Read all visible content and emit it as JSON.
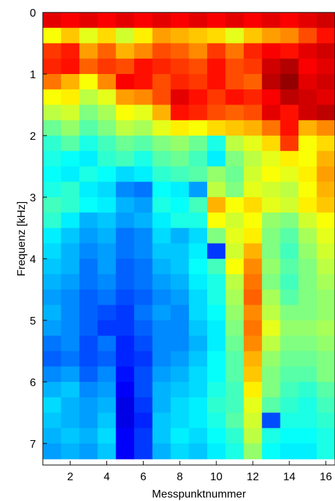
{
  "chart_data": {
    "type": "heatmap",
    "title": "",
    "xlabel": "Messpunktnummer",
    "ylabel": "Frequenz [kHz]",
    "colormap": "jet",
    "color_scale": "normalized 0-1 (blue = low, dark red = high)",
    "xlim": [
      0.5,
      16.5
    ],
    "ylim": [
      7.35,
      0
    ],
    "y_reversed": true,
    "x_ticks": [
      2,
      4,
      6,
      8,
      10,
      12,
      14,
      16
    ],
    "x_tick_labels": [
      "2",
      "4",
      "6",
      "8",
      "10",
      "12",
      "14",
      "16"
    ],
    "y_ticks": [
      0,
      1,
      2,
      3,
      4,
      5,
      6,
      7
    ],
    "y_tick_labels": [
      "0",
      "1",
      "2",
      "3",
      "4",
      "5",
      "6",
      "7"
    ],
    "x": [
      1,
      2,
      3,
      4,
      5,
      6,
      7,
      8,
      9,
      10,
      11,
      12,
      13,
      14,
      15,
      16
    ],
    "y_bands_khz": [
      0.0,
      0.25,
      0.5,
      0.75,
      1.0,
      1.25,
      1.5,
      1.75,
      2.0,
      2.25,
      2.5,
      2.75,
      3.0,
      3.25,
      3.5,
      3.75,
      4.0,
      4.25,
      4.5,
      4.75,
      5.0,
      5.25,
      5.5,
      5.75,
      6.0,
      6.25,
      6.5,
      6.75,
      7.0
    ],
    "values": [
      [
        0.9,
        0.88,
        0.9,
        0.88,
        0.9,
        0.88,
        0.9,
        0.88,
        0.9,
        0.88,
        0.9,
        0.88,
        0.9,
        0.88,
        0.9,
        0.92
      ],
      [
        0.62,
        0.68,
        0.6,
        0.66,
        0.58,
        0.64,
        0.72,
        0.7,
        0.68,
        0.66,
        0.6,
        0.68,
        0.72,
        0.74,
        0.8,
        0.86
      ],
      [
        0.82,
        0.85,
        0.72,
        0.78,
        0.7,
        0.74,
        0.8,
        0.78,
        0.74,
        0.82,
        0.76,
        0.84,
        0.88,
        0.86,
        0.9,
        0.92
      ],
      [
        0.84,
        0.86,
        0.78,
        0.82,
        0.8,
        0.86,
        0.84,
        0.82,
        0.8,
        0.86,
        0.8,
        0.82,
        0.92,
        0.95,
        0.88,
        0.9
      ],
      [
        0.76,
        0.7,
        0.62,
        0.74,
        0.88,
        0.86,
        0.8,
        0.84,
        0.82,
        0.86,
        0.8,
        0.78,
        0.94,
        0.98,
        0.9,
        0.92
      ],
      [
        0.62,
        0.64,
        0.56,
        0.6,
        0.72,
        0.74,
        0.8,
        0.9,
        0.86,
        0.82,
        0.86,
        0.84,
        0.88,
        0.94,
        0.92,
        0.9
      ],
      [
        0.56,
        0.58,
        0.5,
        0.54,
        0.62,
        0.6,
        0.7,
        0.86,
        0.84,
        0.8,
        0.78,
        0.8,
        0.9,
        0.86,
        0.92,
        0.94
      ],
      [
        0.48,
        0.52,
        0.46,
        0.5,
        0.56,
        0.54,
        0.6,
        0.64,
        0.62,
        0.66,
        0.68,
        0.7,
        0.76,
        0.86,
        0.7,
        0.74
      ],
      [
        0.42,
        0.46,
        0.4,
        0.44,
        0.48,
        0.46,
        0.5,
        0.52,
        0.48,
        0.4,
        0.56,
        0.6,
        0.66,
        0.82,
        0.62,
        0.66
      ],
      [
        0.4,
        0.38,
        0.36,
        0.42,
        0.44,
        0.4,
        0.46,
        0.48,
        0.44,
        0.36,
        0.5,
        0.56,
        0.6,
        0.64,
        0.62,
        0.7
      ],
      [
        0.38,
        0.36,
        0.4,
        0.38,
        0.34,
        0.36,
        0.42,
        0.44,
        0.46,
        0.52,
        0.48,
        0.58,
        0.62,
        0.6,
        0.64,
        0.72
      ],
      [
        0.4,
        0.42,
        0.36,
        0.34,
        0.26,
        0.24,
        0.38,
        0.36,
        0.28,
        0.56,
        0.5,
        0.6,
        0.58,
        0.56,
        0.62,
        0.7
      ],
      [
        0.44,
        0.42,
        0.38,
        0.36,
        0.3,
        0.28,
        0.4,
        0.38,
        0.44,
        0.7,
        0.62,
        0.66,
        0.6,
        0.58,
        0.64,
        0.68
      ],
      [
        0.42,
        0.36,
        0.3,
        0.32,
        0.28,
        0.3,
        0.36,
        0.4,
        0.4,
        0.62,
        0.58,
        0.62,
        0.52,
        0.5,
        0.58,
        0.62
      ],
      [
        0.36,
        0.32,
        0.28,
        0.3,
        0.24,
        0.26,
        0.34,
        0.3,
        0.34,
        0.5,
        0.6,
        0.64,
        0.5,
        0.46,
        0.54,
        0.6
      ],
      [
        0.34,
        0.3,
        0.26,
        0.28,
        0.24,
        0.26,
        0.32,
        0.32,
        0.36,
        0.18,
        0.58,
        0.7,
        0.5,
        0.44,
        0.52,
        0.58
      ],
      [
        0.32,
        0.3,
        0.24,
        0.28,
        0.22,
        0.24,
        0.3,
        0.32,
        0.38,
        0.44,
        0.62,
        0.74,
        0.52,
        0.46,
        0.5,
        0.56
      ],
      [
        0.3,
        0.28,
        0.24,
        0.26,
        0.22,
        0.24,
        0.28,
        0.3,
        0.36,
        0.4,
        0.56,
        0.76,
        0.5,
        0.44,
        0.5,
        0.54
      ],
      [
        0.28,
        0.26,
        0.22,
        0.24,
        0.2,
        0.22,
        0.26,
        0.28,
        0.34,
        0.4,
        0.54,
        0.78,
        0.54,
        0.46,
        0.5,
        0.52
      ],
      [
        0.3,
        0.26,
        0.22,
        0.2,
        0.18,
        0.24,
        0.28,
        0.26,
        0.34,
        0.38,
        0.52,
        0.74,
        0.56,
        0.5,
        0.5,
        0.52
      ],
      [
        0.28,
        0.26,
        0.22,
        0.18,
        0.18,
        0.22,
        0.26,
        0.26,
        0.32,
        0.36,
        0.5,
        0.76,
        0.6,
        0.52,
        0.52,
        0.54
      ],
      [
        0.24,
        0.26,
        0.2,
        0.24,
        0.16,
        0.2,
        0.26,
        0.26,
        0.3,
        0.36,
        0.48,
        0.74,
        0.56,
        0.5,
        0.5,
        0.52
      ],
      [
        0.22,
        0.24,
        0.2,
        0.22,
        0.16,
        0.18,
        0.26,
        0.28,
        0.32,
        0.38,
        0.46,
        0.7,
        0.52,
        0.48,
        0.48,
        0.5
      ],
      [
        0.26,
        0.28,
        0.22,
        0.26,
        0.14,
        0.2,
        0.28,
        0.3,
        0.34,
        0.38,
        0.46,
        0.68,
        0.5,
        0.46,
        0.46,
        0.5
      ],
      [
        0.3,
        0.32,
        0.26,
        0.28,
        0.12,
        0.2,
        0.3,
        0.32,
        0.34,
        0.4,
        0.44,
        0.64,
        0.5,
        0.44,
        0.42,
        0.46
      ],
      [
        0.34,
        0.3,
        0.28,
        0.3,
        0.1,
        0.18,
        0.3,
        0.34,
        0.36,
        0.42,
        0.44,
        0.6,
        0.46,
        0.42,
        0.4,
        0.44
      ],
      [
        0.32,
        0.3,
        0.28,
        0.32,
        0.1,
        0.16,
        0.32,
        0.34,
        0.36,
        0.4,
        0.46,
        0.58,
        0.2,
        0.4,
        0.4,
        0.42
      ],
      [
        0.3,
        0.32,
        0.3,
        0.34,
        0.12,
        0.18,
        0.32,
        0.36,
        0.34,
        0.38,
        0.42,
        0.56,
        0.4,
        0.38,
        0.38,
        0.4
      ],
      [
        0.28,
        0.3,
        0.28,
        0.32,
        0.12,
        0.18,
        0.3,
        0.34,
        0.32,
        0.36,
        0.4,
        0.52,
        0.38,
        0.36,
        0.36,
        0.4
      ]
    ]
  }
}
